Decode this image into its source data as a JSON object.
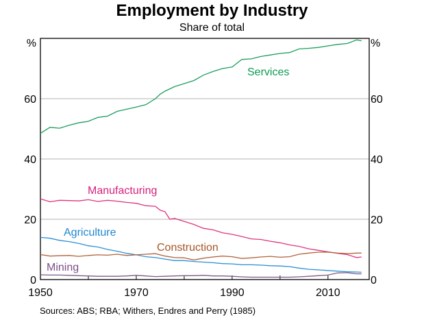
{
  "chart_data": {
    "type": "line",
    "title": "Employment by Industry",
    "subtitle": "Share of total",
    "xlabel": "",
    "ylabel": "%",
    "ylabel_right": "%",
    "xlim": [
      1950,
      2019
    ],
    "ylim": [
      0,
      80
    ],
    "x_ticks": [
      1950,
      1960,
      1970,
      1980,
      1990,
      2000,
      2010
    ],
    "x_tick_labels": [
      "1950",
      "1970",
      "1990",
      "2010"
    ],
    "y_ticks": [
      0,
      20,
      40,
      60
    ],
    "y_tick_labels": [
      "0",
      "20",
      "40",
      "60"
    ],
    "grid": true,
    "legend": "inline labels",
    "series": [
      {
        "name": "Services",
        "color": "#1a9e5c",
        "label_color": "#0d9a50",
        "x": [
          1950,
          1952,
          1954,
          1956,
          1958,
          1960,
          1962,
          1964,
          1966,
          1968,
          1970,
          1972,
          1974,
          1975,
          1976,
          1978,
          1980,
          1982,
          1984,
          1986,
          1988,
          1990,
          1992,
          1994,
          1996,
          1998,
          2000,
          2002,
          2004,
          2006,
          2008,
          2010,
          2012,
          2014,
          2016,
          2017
        ],
        "values": [
          48.5,
          50.5,
          50.2,
          51.2,
          52,
          52.5,
          53.8,
          54.2,
          55.8,
          56.5,
          57.2,
          58,
          60,
          61.5,
          62.5,
          64,
          65,
          66,
          67.8,
          69,
          70,
          70.5,
          73,
          73.2,
          74,
          74.5,
          75,
          75.3,
          76.5,
          76.7,
          77,
          77.5,
          78,
          78.3,
          79.5,
          79.2
        ]
      },
      {
        "name": "Manufacturing",
        "color": "#e0337f",
        "label_color": "#d61f7a",
        "x": [
          1950,
          1952,
          1954,
          1956,
          1958,
          1960,
          1962,
          1964,
          1966,
          1968,
          1970,
          1972,
          1974,
          1975,
          1976,
          1977,
          1978,
          1980,
          1982,
          1984,
          1986,
          1988,
          1990,
          1992,
          1994,
          1996,
          1998,
          2000,
          2002,
          2004,
          2006,
          2008,
          2010,
          2012,
          2014,
          2016,
          2017
        ],
        "values": [
          26.8,
          25.8,
          26.3,
          26.2,
          26.1,
          26.5,
          25.9,
          26.3,
          26,
          25.6,
          25.3,
          24.5,
          24.3,
          23,
          22.5,
          20,
          20.3,
          19.3,
          18.3,
          17,
          16.5,
          15.5,
          15,
          14.3,
          13.5,
          13.3,
          12.7,
          12.2,
          11.5,
          11,
          10.2,
          9.7,
          9.2,
          8.7,
          8.3,
          7.3,
          7.5
        ]
      },
      {
        "name": "Agriculture",
        "color": "#2b8fd6",
        "label_color": "#1f86cf",
        "x": [
          1950,
          1952,
          1954,
          1956,
          1958,
          1960,
          1962,
          1964,
          1966,
          1968,
          1970,
          1972,
          1974,
          1976,
          1978,
          1980,
          1982,
          1984,
          1986,
          1988,
          1990,
          1992,
          1994,
          1996,
          1998,
          2000,
          2002,
          2004,
          2006,
          2008,
          2010,
          2012,
          2014,
          2016,
          2017
        ],
        "values": [
          14,
          13.7,
          13,
          12.6,
          12,
          11.2,
          10.8,
          10,
          9.4,
          8.7,
          8.2,
          7.6,
          7.3,
          6.8,
          6.3,
          6.3,
          6,
          5.8,
          5.6,
          5.3,
          5.2,
          4.9,
          4.9,
          4.8,
          4.6,
          4.5,
          4.3,
          3.8,
          3.4,
          3.2,
          3,
          2.8,
          2.6,
          2.5,
          2.4
        ]
      },
      {
        "name": "Construction",
        "color": "#b0623a",
        "label_color": "#a65526",
        "x": [
          1950,
          1952,
          1954,
          1956,
          1958,
          1960,
          1962,
          1964,
          1966,
          1968,
          1970,
          1972,
          1974,
          1976,
          1978,
          1980,
          1982,
          1984,
          1986,
          1988,
          1990,
          1992,
          1994,
          1996,
          1998,
          2000,
          2002,
          2004,
          2006,
          2008,
          2010,
          2012,
          2014,
          2016,
          2017
        ],
        "values": [
          8.3,
          7.8,
          7.9,
          8,
          7.7,
          8,
          8.2,
          8.1,
          8.4,
          8,
          8.2,
          8.4,
          8.6,
          7.8,
          7.3,
          7.2,
          6.5,
          7.1,
          7.5,
          7.8,
          7.6,
          7,
          7.2,
          7.5,
          7.7,
          7.4,
          7.6,
          8.4,
          8.8,
          9.1,
          9.1,
          8.8,
          8.6,
          8.8,
          8.8
        ]
      },
      {
        "name": "Mining",
        "color": "#7d5a8c",
        "label_color": "#7a4e8a",
        "x": [
          1950,
          1952,
          1954,
          1956,
          1958,
          1960,
          1962,
          1964,
          1966,
          1968,
          1970,
          1972,
          1974,
          1976,
          1978,
          1980,
          1982,
          1984,
          1986,
          1988,
          1990,
          1992,
          1994,
          1996,
          1998,
          2000,
          2002,
          2004,
          2006,
          2008,
          2010,
          2012,
          2014,
          2016,
          2017
        ],
        "values": [
          1.6,
          1.5,
          1.5,
          1.4,
          1.3,
          1.2,
          1.1,
          1.1,
          1.1,
          1.2,
          1.4,
          1.2,
          1,
          1.1,
          1.2,
          1.3,
          1.3,
          1.4,
          1.2,
          1.2,
          1.1,
          0.9,
          0.8,
          0.8,
          0.8,
          0.8,
          0.8,
          0.9,
          1.1,
          1.3,
          1.5,
          2.2,
          2.3,
          1.9,
          1.9
        ]
      }
    ],
    "annotations": [
      {
        "text": "Services",
        "series": "Services"
      },
      {
        "text": "Manufacturing",
        "series": "Manufacturing"
      },
      {
        "text": "Agriculture",
        "series": "Agriculture"
      },
      {
        "text": "Construction",
        "series": "Construction"
      },
      {
        "text": "Mining",
        "series": "Mining"
      }
    ]
  },
  "source_text": "Sources:   ABS; RBA; Withers, Endres and Perry (1985)"
}
